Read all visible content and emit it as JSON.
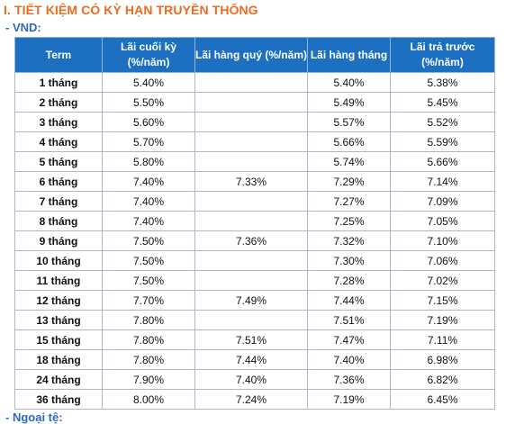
{
  "section_title": "I. TIẾT KIỆM CÓ KỲ HẠN TRUYỀN THỐNG",
  "currency_heading": "- VND:",
  "next_heading": "- Ngoại tệ:",
  "table": {
    "headers": [
      "Term",
      "Lãi cuối kỳ (%/năm)",
      "Lãi hàng quý (%/năm)",
      "Lãi hàng tháng",
      "Lãi trả trước (%/năm)"
    ],
    "rows": [
      [
        "1 tháng",
        "5.40%",
        "",
        "5.40%",
        "5.38%"
      ],
      [
        "2 tháng",
        "5.50%",
        "",
        "5.49%",
        "5.45%"
      ],
      [
        "3 tháng",
        "5.60%",
        "",
        "5.57%",
        "5.52%"
      ],
      [
        "4 tháng",
        "5.70%",
        "",
        "5.66%",
        "5.59%"
      ],
      [
        "5 tháng",
        "5.80%",
        "",
        "5.74%",
        "5.66%"
      ],
      [
        "6 tháng",
        "7.40%",
        "7.33%",
        "7.29%",
        "7.14%"
      ],
      [
        "7 tháng",
        "7.40%",
        "",
        "7.27%",
        "7.09%"
      ],
      [
        "8 tháng",
        "7.40%",
        "",
        "7.25%",
        "7.05%"
      ],
      [
        "9 tháng",
        "7.50%",
        "7.36%",
        "7.32%",
        "7.10%"
      ],
      [
        "10 tháng",
        "7.50%",
        "",
        "7.30%",
        "7.06%"
      ],
      [
        "11 tháng",
        "7.50%",
        "",
        "7.28%",
        "7.02%"
      ],
      [
        "12 tháng",
        "7.70%",
        "7.49%",
        "7.44%",
        "7.15%"
      ],
      [
        "13 tháng",
        "7.80%",
        "",
        "7.51%",
        "7.19%"
      ],
      [
        "15 tháng",
        "7.80%",
        "7.51%",
        "7.47%",
        "7.11%"
      ],
      [
        "18 tháng",
        "7.80%",
        "7.44%",
        "7.40%",
        "6.98%"
      ],
      [
        "24 tháng",
        "7.90%",
        "7.40%",
        "7.36%",
        "6.82%"
      ],
      [
        "36 tháng",
        "8.00%",
        "7.24%",
        "7.19%",
        "6.45%"
      ]
    ]
  },
  "colors": {
    "title": "#ee6a1f",
    "subheading": "#2a6ab8",
    "header_bg": "#1d6fc2",
    "border": "#aeb6c7"
  }
}
